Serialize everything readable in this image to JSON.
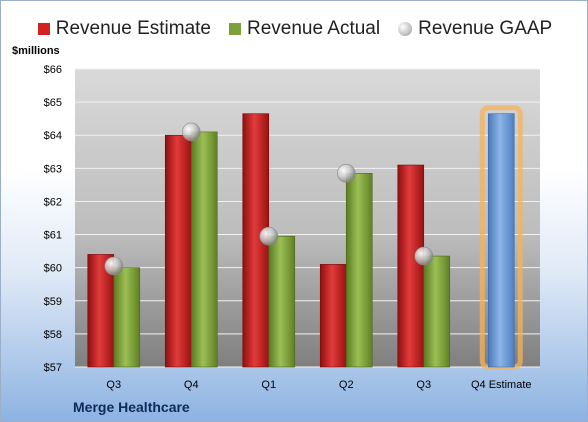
{
  "chart_data": {
    "type": "bar",
    "ylabel": "$millions",
    "ylim": [
      57,
      66
    ],
    "y_ticks": [
      "$57",
      "$58",
      "$59",
      "$60",
      "$61",
      "$62",
      "$63",
      "$64",
      "$65",
      "$66"
    ],
    "categories": [
      "Q3",
      "Q4",
      "Q1",
      "Q2",
      "Q3",
      "Q4 Estimate"
    ],
    "series": [
      {
        "name": "Revenue Estimate",
        "color": "#d42020",
        "values": [
          60.4,
          64.0,
          64.65,
          60.1,
          63.1,
          null
        ]
      },
      {
        "name": "Revenue Actual",
        "color": "#7ea23a",
        "values": [
          60.0,
          64.1,
          60.95,
          62.85,
          60.35,
          null
        ]
      },
      {
        "name": "Revenue GAAP",
        "color": "#b0b0b0",
        "values": [
          60.05,
          64.1,
          60.95,
          62.85,
          60.35,
          null
        ]
      }
    ],
    "estimate_bar": {
      "category": "Q4 Estimate",
      "value": 64.65,
      "color": "#6f9ed8",
      "glow": "#f6b25a"
    },
    "grid": true,
    "legend_position": "top"
  },
  "footer": {
    "company": "Merge Healthcare"
  }
}
